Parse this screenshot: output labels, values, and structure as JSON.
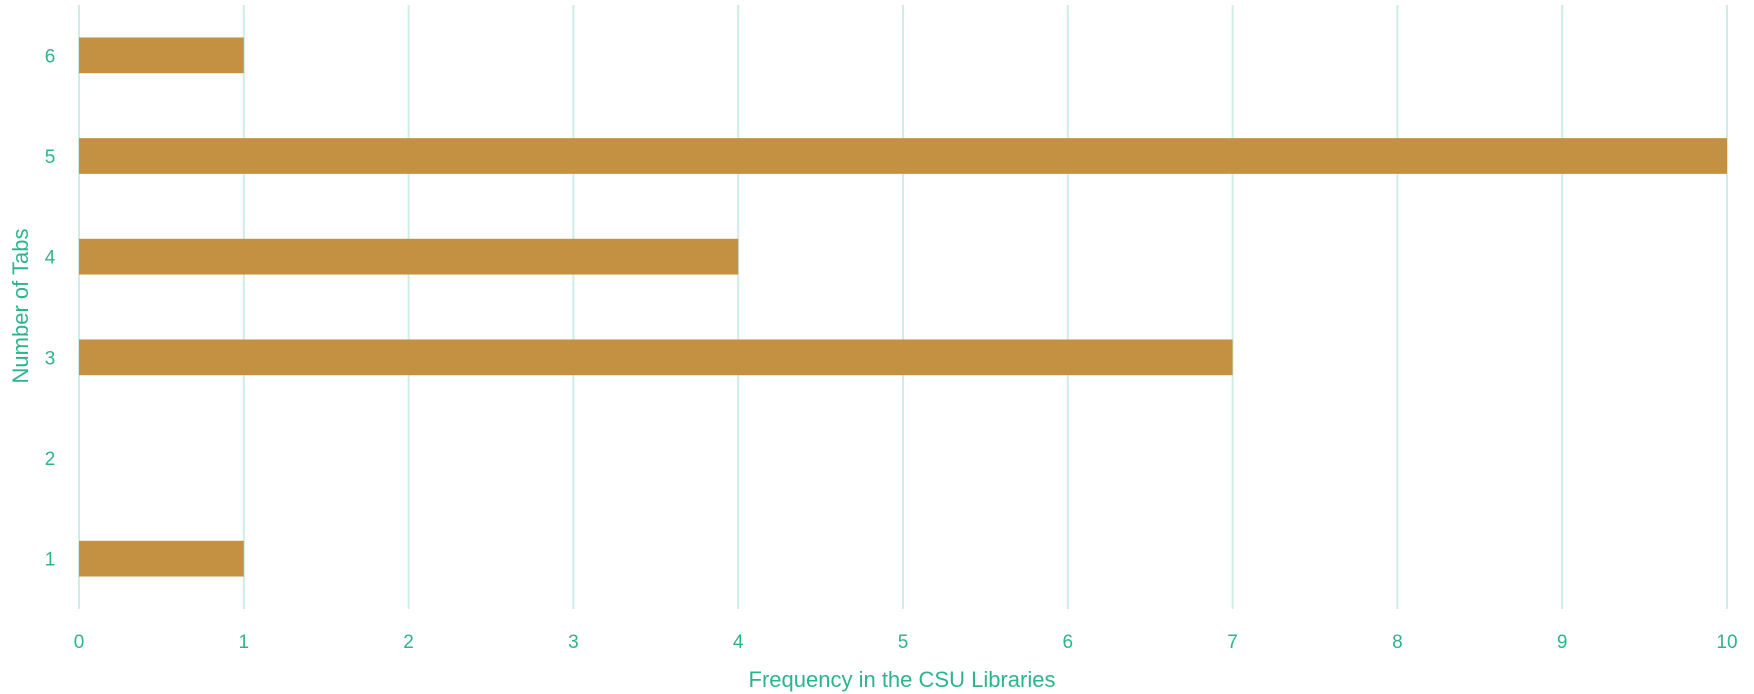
{
  "chart_data": {
    "type": "bar",
    "orientation": "horizontal",
    "title": "",
    "xlabel": "Frequency in the CSU Libraries",
    "ylabel": "Number of Tabs",
    "categories": [
      "1",
      "2",
      "3",
      "4",
      "5",
      "6"
    ],
    "values": [
      1,
      0,
      7,
      4,
      10,
      1
    ],
    "xlim": [
      0,
      10
    ],
    "x_ticks": [
      0,
      1,
      2,
      3,
      4,
      5,
      6,
      7,
      8,
      9,
      10
    ],
    "grid": "vertical",
    "legend": "none"
  },
  "colors": {
    "bar": "#C49143",
    "grid": "#CDEDE6",
    "text": "#2EB48C"
  }
}
